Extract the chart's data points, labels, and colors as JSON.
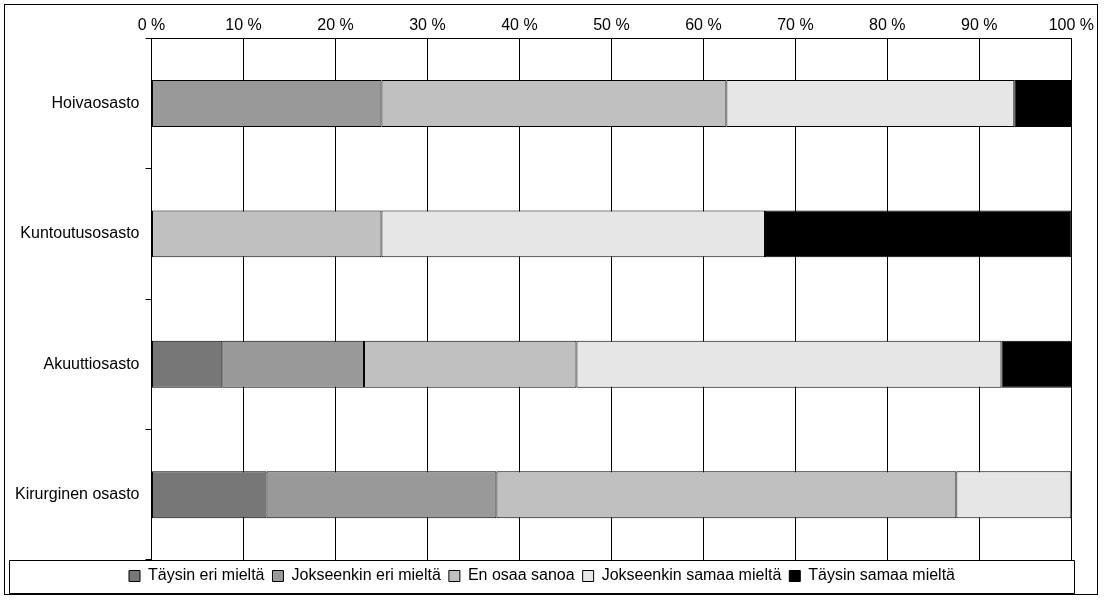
{
  "chart_data": {
    "type": "bar",
    "orientation": "horizontal",
    "stacked": true,
    "categories": [
      "Hoivaosasto",
      "Kuntoutusosasto",
      "Akuuttiosasto",
      "Kirurginen osasto"
    ],
    "series": [
      {
        "name": "Täysin eri mieltä",
        "color": "#777777",
        "values": [
          null,
          null,
          7.7,
          12.5
        ]
      },
      {
        "name": "Jokseenkin eri mieltä",
        "color": "#999999",
        "values": [
          25,
          null,
          15.4,
          25
        ]
      },
      {
        "name": "En osaa sanoa",
        "color": "#c0c0c0",
        "values": [
          37.5,
          25,
          23.1,
          50
        ]
      },
      {
        "name": "Jokseenkin samaa mieltä",
        "color": "#e6e6e6",
        "values": [
          31.3,
          41.7,
          46.2,
          12.5
        ]
      },
      {
        "name": "Täysin samaa mieltä",
        "color": "#000000",
        "values": [
          6.3,
          33.3,
          7.7,
          null
        ]
      }
    ],
    "xlim": [
      0,
      100
    ],
    "xticks": [
      {
        "value": 0,
        "label": "0 %"
      },
      {
        "value": 10,
        "label": "10 %"
      },
      {
        "value": 20,
        "label": "20 %"
      },
      {
        "value": 30,
        "label": "30 %"
      },
      {
        "value": 40,
        "label": "40 %"
      },
      {
        "value": 50,
        "label": "50 %"
      },
      {
        "value": 60,
        "label": "60 %"
      },
      {
        "value": 70,
        "label": "70 %"
      },
      {
        "value": 80,
        "label": "80 %"
      },
      {
        "value": 90,
        "label": "90 %"
      },
      {
        "value": 100,
        "label": "100 %"
      }
    ],
    "grid": "x",
    "legend": "bottom"
  }
}
